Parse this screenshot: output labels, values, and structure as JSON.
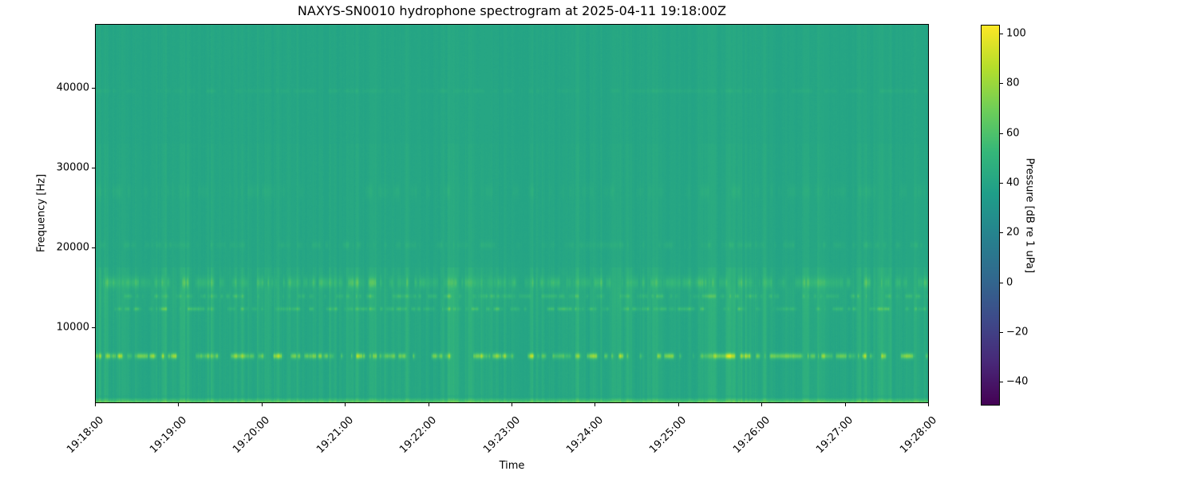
{
  "title": "NAXYS-SN0010 hydrophone spectrogram at 2025-04-11 19:18:00Z",
  "axes": {
    "xlabel": "Time",
    "ylabel": "Frequency [Hz]",
    "x_tick_labels": [
      "19:18:00",
      "19:19:00",
      "19:20:00",
      "19:21:00",
      "19:22:00",
      "19:23:00",
      "19:24:00",
      "19:25:00",
      "19:26:00",
      "19:27:00",
      "19:28:00"
    ],
    "y_ticks": [
      {
        "value": 10000,
        "label": "10000"
      },
      {
        "value": 20000,
        "label": "20000"
      },
      {
        "value": 30000,
        "label": "30000"
      },
      {
        "value": 40000,
        "label": "40000"
      }
    ]
  },
  "colorbar": {
    "label": "Pressure [dB re 1 uPa]",
    "ticks": [
      {
        "value": 100,
        "label": "100"
      },
      {
        "value": 80,
        "label": "80"
      },
      {
        "value": 60,
        "label": "60"
      },
      {
        "value": 40,
        "label": "40"
      },
      {
        "value": 20,
        "label": "20"
      },
      {
        "value": 0,
        "label": "0"
      },
      {
        "value": -20,
        "label": "−20"
      },
      {
        "value": -40,
        "label": "−40"
      }
    ],
    "vmin": -49.5,
    "vmax": 103.5,
    "colormap": "viridis",
    "colormap_stops": [
      "#440154",
      "#482878",
      "#3e4989",
      "#31688e",
      "#26828e",
      "#1f9e89",
      "#35b779",
      "#6ece58",
      "#b5de2b",
      "#fde725"
    ]
  },
  "chart_data": {
    "type": "heatmap",
    "subtype": "spectrogram",
    "title": "NAXYS-SN0010 hydrophone spectrogram at 2025-04-11 19:18:00Z",
    "xlabel": "Time",
    "ylabel": "Frequency [Hz]",
    "start_time_utc": "2025-04-11 19:18:00Z",
    "time_span_seconds": 600,
    "x_tick_labels": [
      "19:18:00",
      "19:19:00",
      "19:20:00",
      "19:21:00",
      "19:22:00",
      "19:23:00",
      "19:24:00",
      "19:25:00",
      "19:26:00",
      "19:27:00",
      "19:28:00"
    ],
    "freq_range_hz": [
      500,
      48000
    ],
    "y_tick_values_hz": [
      10000,
      20000,
      30000,
      40000
    ],
    "value_range_db": [
      -49.5,
      103.5
    ],
    "colormap": "viridis",
    "background_level_db": 40,
    "features": {
      "tonal_bands": [
        {
          "freq_hz": 6400,
          "sigma_hz": 240,
          "peak_db_above_bg": 42,
          "duty": 0.55,
          "description": "bright intermittent tonal line ~6.4 kHz (yellow speckles)"
        },
        {
          "freq_hz": 12300,
          "sigma_hz": 160,
          "peak_db_above_bg": 17,
          "duty": 0.5,
          "description": "thin intermittent line ~12.3 kHz"
        },
        {
          "freq_hz": 13900,
          "sigma_hz": 180,
          "peak_db_above_bg": 14,
          "duty": 0.5,
          "description": "thin intermittent line ~13.9 kHz"
        },
        {
          "freq_hz": 15600,
          "sigma_hz": 450,
          "peak_db_above_bg": 15,
          "duty": 0.6,
          "description": "fuzzy speckle band ~15-16.5 kHz"
        },
        {
          "freq_hz": 14200,
          "sigma_hz": 1800,
          "peak_db_above_bg": 2.5,
          "duty": 1.0,
          "description": "broad mild elevation 12-17 kHz"
        },
        {
          "freq_hz": 20300,
          "sigma_hz": 300,
          "peak_db_above_bg": 6,
          "duty": 0.45,
          "description": "faint speckle ~20.3 kHz"
        },
        {
          "freq_hz": 27000,
          "sigma_hz": 600,
          "peak_db_above_bg": 4,
          "duty": 0.4,
          "description": "very faint speckle ~27 kHz"
        },
        {
          "freq_hz": 39600,
          "sigma_hz": 180,
          "peak_db_above_bg": 4,
          "duty": 0.7,
          "description": "faint nearly continuous line ~39.6 kHz"
        }
      ],
      "low_freq_edge": {
        "below_hz": 1200,
        "boost_db": 26,
        "description": "bright light-green band at bottom edge (lowest frequencies)"
      },
      "broadband_pulses": {
        "max_db_above_bg": 9,
        "description": "dense vertical striping from repetitive broadband pulses, strongest below ~17 kHz"
      }
    }
  }
}
